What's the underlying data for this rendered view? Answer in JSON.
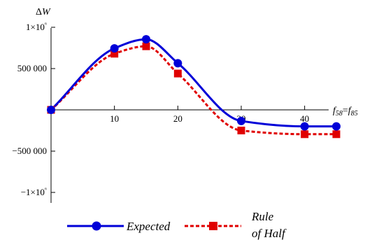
{
  "chart_data": {
    "type": "line",
    "title": "",
    "xlabel": "f58=f85",
    "ylabel": "ΔW",
    "xlim": [
      0,
      45
    ],
    "ylim": [
      -1250000,
      1100000
    ],
    "grid": false,
    "legend_position": "bottom",
    "x_ticks": [
      10,
      20,
      30,
      40
    ],
    "y_ticks": [
      {
        "value": 1000000,
        "label": "1×10⁶"
      },
      {
        "value": 500000,
        "label": "500 000"
      },
      {
        "value": -500000,
        "label": "−500 000"
      },
      {
        "value": -1000000,
        "label": "−1×10⁶"
      }
    ],
    "x_axis_label": {
      "var": "f",
      "sub1": "58",
      "eq": "=",
      "sub2": "85"
    },
    "y_axis_label": {
      "delta": "Δ",
      "var": "W"
    },
    "series": [
      {
        "name": "Expected",
        "color": "#0000d8",
        "line_style": "solid",
        "marker": "circle",
        "x": [
          0,
          10,
          15,
          20,
          30,
          40,
          45
        ],
        "y": [
          0,
          745000,
          855000,
          565000,
          -135000,
          -200000,
          -200000
        ]
      },
      {
        "name": "Rule of Half",
        "legend_lines": [
          "Rule",
          "of Half"
        ],
        "color": "#e00000",
        "line_style": "dashed",
        "marker": "square",
        "x": [
          0,
          10,
          15,
          20,
          30,
          40,
          45
        ],
        "y": [
          0,
          680000,
          770000,
          440000,
          -250000,
          -295000,
          -295000
        ]
      }
    ]
  }
}
